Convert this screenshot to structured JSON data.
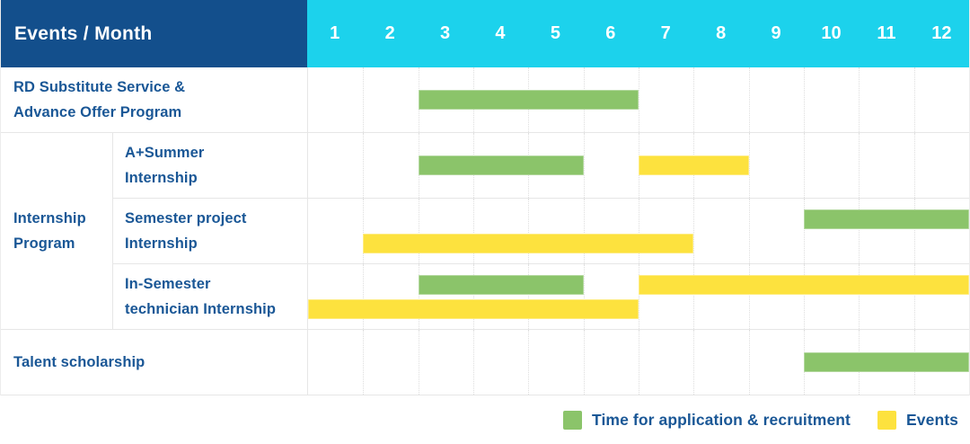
{
  "header": {
    "title": "Events / Month",
    "months": [
      "1",
      "2",
      "3",
      "4",
      "5",
      "6",
      "7",
      "8",
      "9",
      "10",
      "11",
      "12"
    ]
  },
  "colors": {
    "header_bg": "#134F8C",
    "months_bg": "#1CD2EC",
    "text_blue": "#1A5796",
    "recruitment": "#8BC46A",
    "event": "#FDE23E",
    "grid_line": "#E6E6E6"
  },
  "sections": [
    {
      "kind": "row",
      "label_lines": [
        "RD Substitute Service &",
        "Advance Offer Program"
      ],
      "lines": [
        [
          {
            "type": "recruitment",
            "from": 3,
            "to": 6
          }
        ]
      ]
    },
    {
      "kind": "group",
      "label_lines": [
        "Internship",
        "Program"
      ],
      "children": [
        {
          "label_lines": [
            "A+Summer",
            "Internship"
          ],
          "lines": [
            [
              {
                "type": "recruitment",
                "from": 3,
                "to": 5
              },
              {
                "type": "event",
                "from": 7,
                "to": 8
              }
            ]
          ]
        },
        {
          "label_lines": [
            "Semester project",
            "Internship"
          ],
          "lines": [
            [
              {
                "type": "recruitment",
                "from": 10,
                "to": 12
              }
            ],
            [
              {
                "type": "event",
                "from": 2,
                "to": 7
              }
            ]
          ]
        },
        {
          "label_lines": [
            "In-Semester",
            "technician Internship"
          ],
          "lines": [
            [
              {
                "type": "recruitment",
                "from": 3,
                "to": 5
              },
              {
                "type": "event",
                "from": 7,
                "to": 12
              }
            ],
            [
              {
                "type": "event",
                "from": 1,
                "to": 6
              }
            ]
          ]
        }
      ]
    },
    {
      "kind": "row",
      "label_lines": [
        "Talent scholarship"
      ],
      "lines": [
        [
          {
            "type": "recruitment",
            "from": 10,
            "to": 12
          }
        ]
      ]
    }
  ],
  "legend": {
    "items": [
      {
        "type": "recruitment",
        "label": "Time for application & recruitment"
      },
      {
        "type": "event",
        "label": "Events"
      }
    ]
  },
  "chart_data": {
    "type": "gantt",
    "title": "Events / Month",
    "x_axis": {
      "label": "Month",
      "ticks": [
        1,
        2,
        3,
        4,
        5,
        6,
        7,
        8,
        9,
        10,
        11,
        12
      ],
      "range": [
        1,
        12
      ]
    },
    "legend": [
      {
        "name": "Time for application & recruitment",
        "color": "#8BC46A"
      },
      {
        "name": "Events",
        "color": "#FDE23E"
      }
    ],
    "tasks": [
      {
        "name": "RD Substitute Service & Advance Offer Program",
        "group": null,
        "recruitment_months": [
          [
            3,
            6
          ]
        ],
        "event_months": []
      },
      {
        "name": "A+Summer Internship",
        "group": "Internship Program",
        "recruitment_months": [
          [
            3,
            5
          ]
        ],
        "event_months": [
          [
            7,
            8
          ]
        ]
      },
      {
        "name": "Semester project Internship",
        "group": "Internship Program",
        "recruitment_months": [
          [
            10,
            12
          ]
        ],
        "event_months": [
          [
            2,
            7
          ]
        ]
      },
      {
        "name": "In-Semester technician Internship",
        "group": "Internship Program",
        "recruitment_months": [
          [
            3,
            5
          ]
        ],
        "event_months": [
          [
            7,
            12
          ],
          [
            1,
            6
          ]
        ]
      },
      {
        "name": "Talent scholarship",
        "group": null,
        "recruitment_months": [
          [
            10,
            12
          ]
        ],
        "event_months": []
      }
    ]
  }
}
